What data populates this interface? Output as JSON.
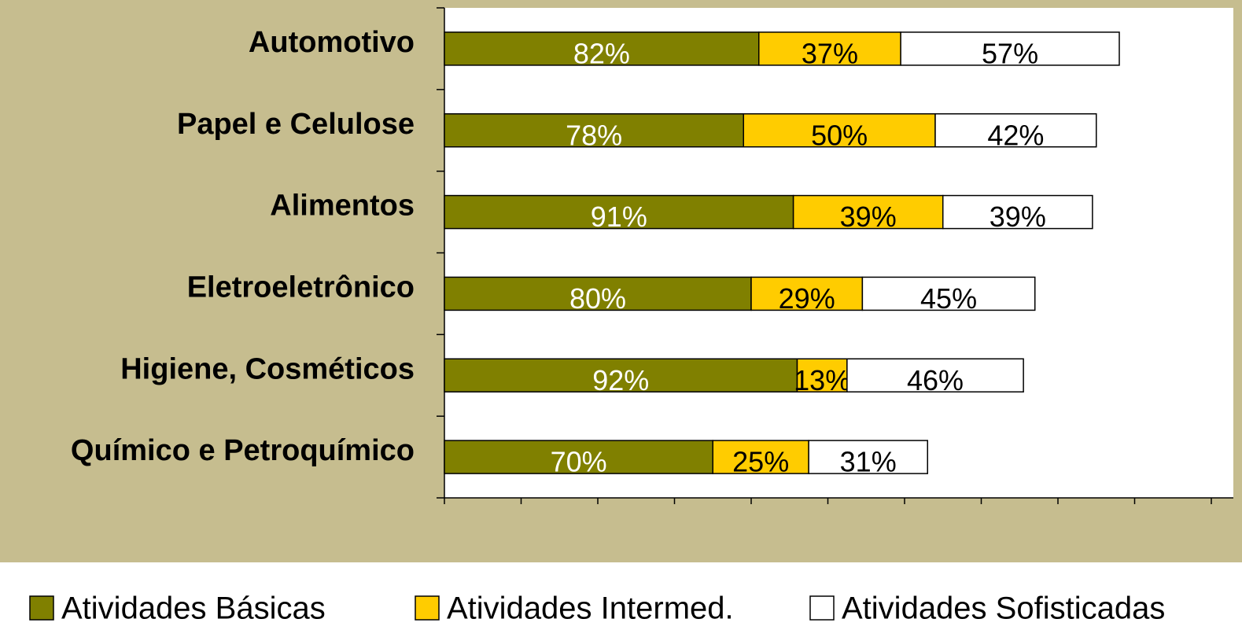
{
  "chart_data": {
    "type": "stacked_bar_horizontal",
    "categories": [
      "Automotivo",
      "Papel e Celulose",
      "Alimentos",
      "Eletroeletrônico",
      "Higiene, Cosméticos",
      "Químico e Petroquímico"
    ],
    "series": [
      {
        "name": "Atividades Básicas",
        "color": "#808000",
        "values": [
          82,
          78,
          91,
          80,
          92,
          70
        ],
        "value_labels": [
          "82%",
          "78%",
          "91%",
          "80%",
          "92%",
          "70%"
        ]
      },
      {
        "name": "Atividades Intermed.",
        "color": "#ffcc00",
        "values": [
          37,
          50,
          39,
          29,
          13,
          25
        ],
        "value_labels": [
          "37%",
          "50%",
          "39%",
          "29%",
          "13%",
          "25%"
        ]
      },
      {
        "name": "Atividades Sofisticadas",
        "color": "#ffffff",
        "values": [
          57,
          42,
          39,
          45,
          46,
          31
        ],
        "value_labels": [
          "57%",
          "42%",
          "39%",
          "45%",
          "46%",
          "31%"
        ]
      }
    ],
    "xlim": [
      0,
      200
    ],
    "xticks": [
      0,
      20,
      40,
      60,
      80,
      100,
      120,
      140,
      160,
      180,
      200
    ]
  }
}
